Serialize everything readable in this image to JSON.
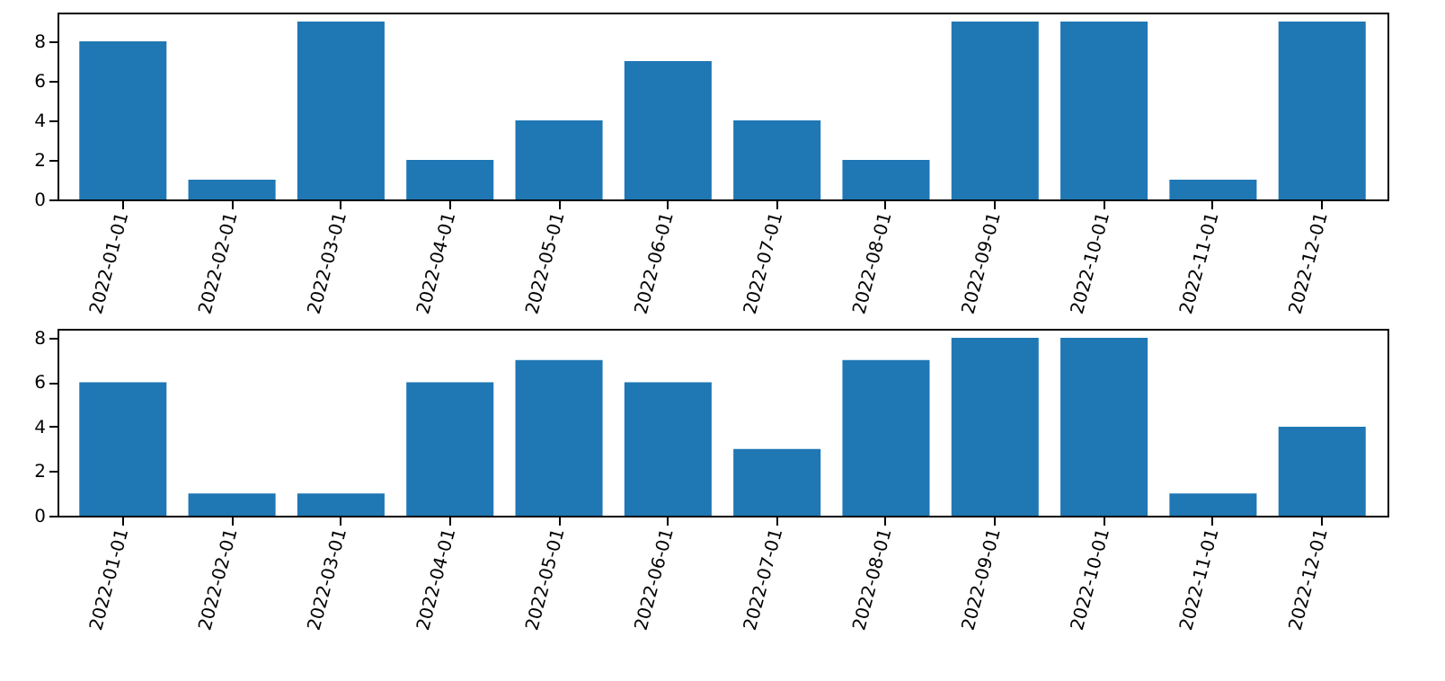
{
  "chart_data": [
    {
      "type": "bar",
      "categories": [
        "2022-01-01",
        "2022-02-01",
        "2022-03-01",
        "2022-04-01",
        "2022-05-01",
        "2022-06-01",
        "2022-07-01",
        "2022-08-01",
        "2022-09-01",
        "2022-10-01",
        "2022-11-01",
        "2022-12-01"
      ],
      "values": [
        8,
        1,
        9,
        2,
        4,
        7,
        4,
        2,
        9,
        9,
        1,
        9
      ],
      "color": "#1f77b4",
      "ylim": [
        0,
        9.45
      ],
      "yticks": [
        0,
        2,
        4,
        6,
        8
      ],
      "grid": false
    },
    {
      "type": "bar",
      "categories": [
        "2022-01-01",
        "2022-02-01",
        "2022-03-01",
        "2022-04-01",
        "2022-05-01",
        "2022-06-01",
        "2022-07-01",
        "2022-08-01",
        "2022-09-01",
        "2022-10-01",
        "2022-11-01",
        "2022-12-01"
      ],
      "values": [
        6,
        1,
        1,
        6,
        7,
        6,
        3,
        7,
        8,
        8,
        1,
        4
      ],
      "color": "#1f77b4",
      "ylim": [
        0,
        8.4
      ],
      "yticks": [
        0,
        2,
        4,
        6,
        8
      ],
      "grid": false
    }
  ]
}
